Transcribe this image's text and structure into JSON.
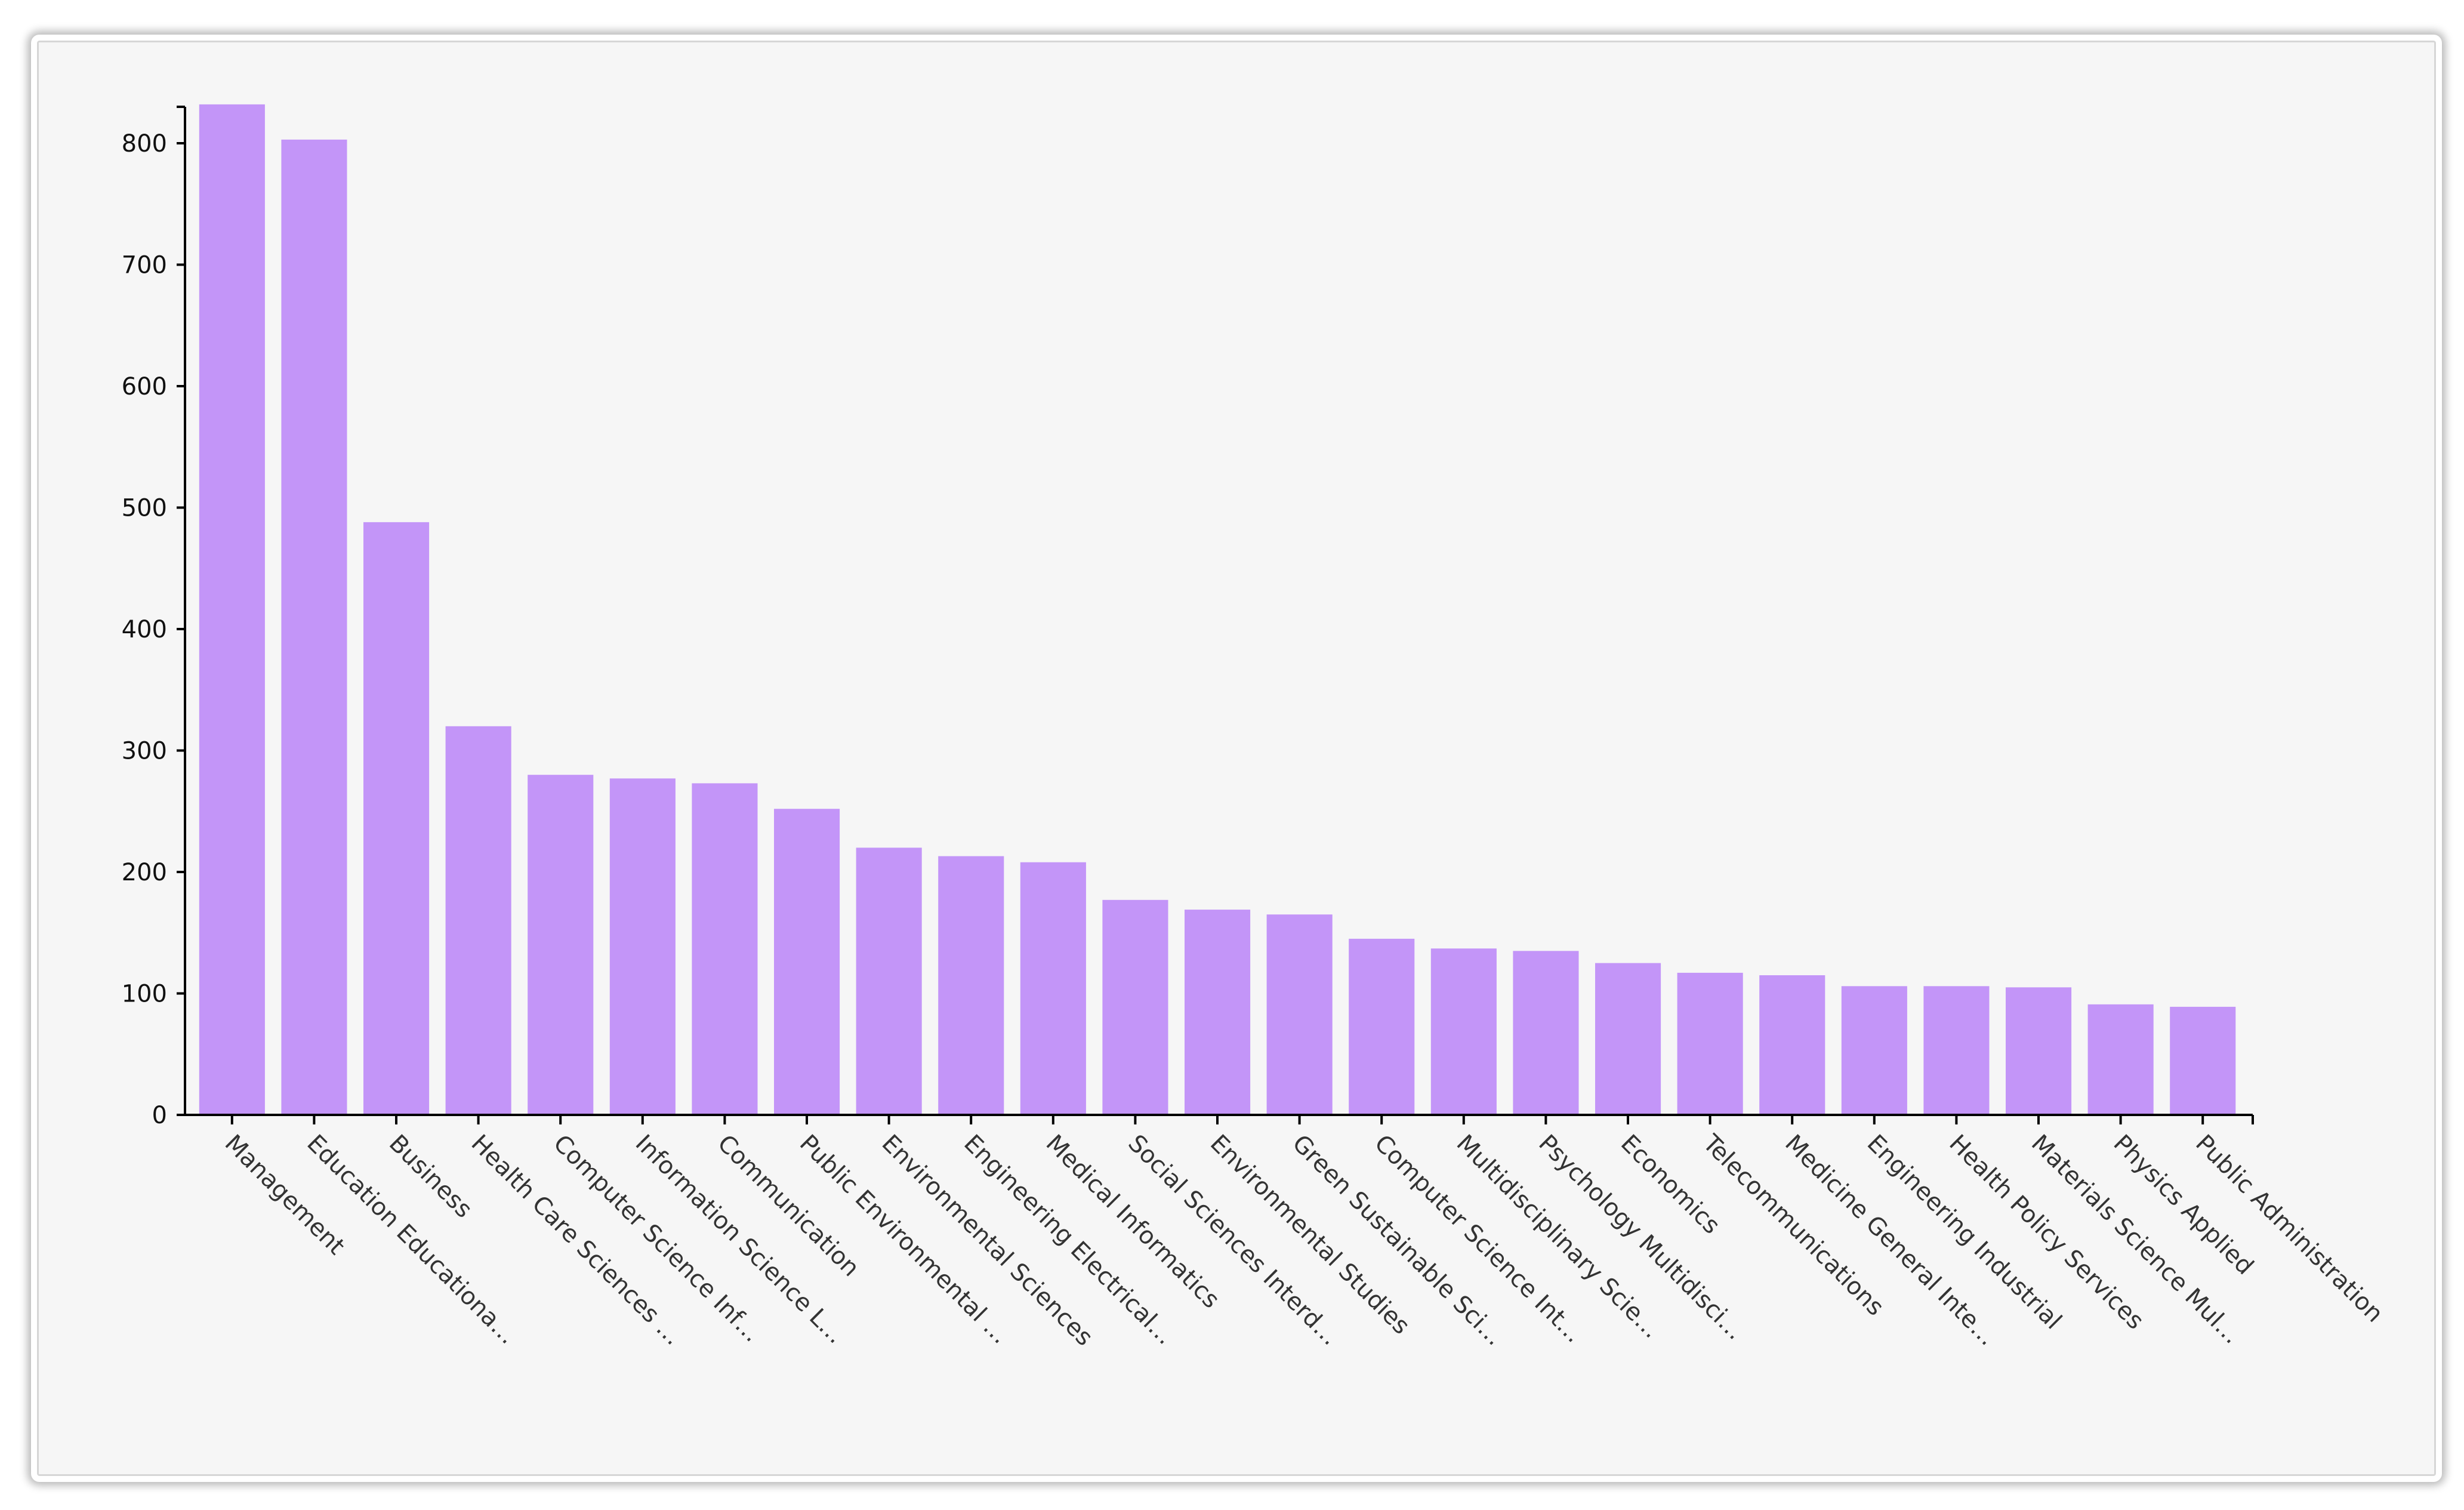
{
  "chart_data": {
    "type": "bar",
    "title": "",
    "xlabel": "",
    "ylabel": "",
    "ylim": [
      0,
      830
    ],
    "yticks": [
      0,
      100,
      200,
      300,
      400,
      500,
      600,
      700,
      800
    ],
    "grid": false,
    "bar_color": "#c395f8",
    "categories": [
      "Management",
      "Education Educationa…",
      "Business",
      "Health Care Sciences …",
      "Computer Science Inf…",
      "Information Science L…",
      "Communication",
      "Public Environmental …",
      "Environmental Sciences",
      "Engineering Electrical…",
      "Medical Informatics",
      "Social Sciences Interd…",
      "Environmental Studies",
      "Green Sustainable Sci…",
      "Computer Science Int…",
      "Multidisciplinary Scie…",
      "Psychology Multidisci…",
      "Economics",
      "Telecommunications",
      "Medicine General Inte…",
      "Engineering Industrial",
      "Health Policy Services",
      "Materials Science Mul…",
      "Physics Applied",
      "Public Administration"
    ],
    "values": [
      832,
      803,
      488,
      320,
      280,
      277,
      273,
      252,
      220,
      213,
      208,
      177,
      169,
      165,
      145,
      137,
      135,
      125,
      117,
      115,
      106,
      106,
      105,
      91,
      89
    ]
  }
}
